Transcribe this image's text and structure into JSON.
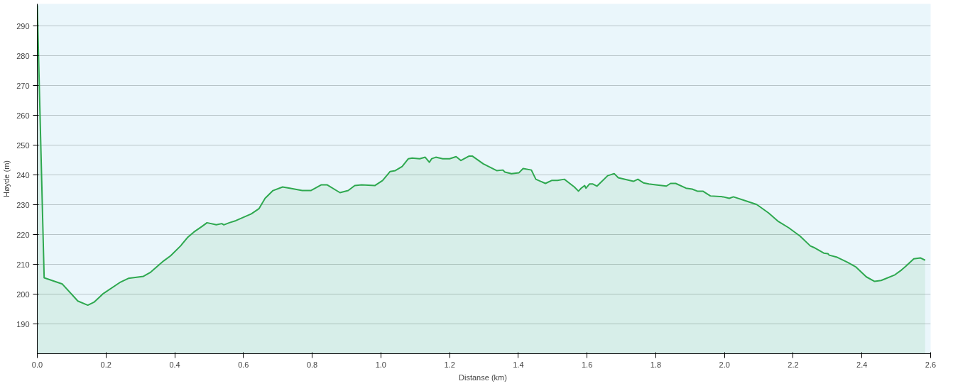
{
  "chart_data": {
    "type": "area",
    "xlabel": "Distanse  (km)",
    "ylabel": "Høyde (m)",
    "xlim": [
      0,
      2.6
    ],
    "ylim": [
      180,
      297.5
    ],
    "xticks": [
      {
        "value": 0,
        "label": "0.0"
      },
      0.2,
      0.4,
      0.6,
      0.8,
      {
        "value": 1,
        "label": "1.0"
      },
      1.2,
      1.4,
      1.6,
      1.8,
      {
        "value": 2,
        "label": "2.0"
      },
      2.2,
      2.4,
      2.6
    ],
    "yticks": [
      190,
      200,
      210,
      220,
      230,
      240,
      250,
      260,
      270,
      280,
      290
    ],
    "grid": "y",
    "series": [
      {
        "color": "#2ea84f",
        "x": [
          0,
          0.02,
          0.073,
          0.118,
          0.147,
          0.165,
          0.191,
          0.24,
          0.265,
          0.309,
          0.33,
          0.368,
          0.388,
          0.417,
          0.437,
          0.456,
          0.48,
          0.494,
          0.521,
          0.537,
          0.543,
          0.559,
          0.578,
          0.623,
          0.645,
          0.663,
          0.686,
          0.714,
          0.735,
          0.771,
          0.796,
          0.826,
          0.844,
          0.881,
          0.905,
          0.924,
          0.944,
          0.983,
          1.005,
          1.027,
          1.042,
          1.062,
          1.08,
          1.091,
          1.113,
          1.129,
          1.141,
          1.148,
          1.16,
          1.18,
          1.2,
          1.219,
          1.233,
          1.257,
          1.266,
          1.298,
          1.337,
          1.355,
          1.361,
          1.38,
          1.402,
          1.414,
          1.438,
          1.451,
          1.479,
          1.497,
          1.514,
          1.534,
          1.563,
          1.575,
          1.583,
          1.593,
          1.597,
          1.607,
          1.617,
          1.629,
          1.66,
          1.679,
          1.691,
          1.735,
          1.748,
          1.764,
          1.78,
          1.8,
          1.831,
          1.843,
          1.858,
          1.888,
          1.906,
          1.921,
          1.937,
          1.959,
          1.996,
          2.014,
          2.026,
          2.063,
          2.094,
          2.128,
          2.157,
          2.187,
          2.22,
          2.25,
          2.26,
          2.289,
          2.301,
          2.305,
          2.328,
          2.358,
          2.383,
          2.413,
          2.437,
          2.456,
          2.496,
          2.515,
          2.527,
          2.551,
          2.57,
          2.584
        ],
        "values": [
          297,
          205.5,
          203.4,
          197.7,
          196.3,
          197.3,
          200.1,
          203.9,
          205.3,
          206,
          207.4,
          211.2,
          212.9,
          216.2,
          219,
          220.9,
          222.8,
          224,
          223.3,
          223.7,
          223.3,
          224,
          224.7,
          227,
          228.7,
          232.2,
          234.8,
          236,
          235.6,
          234.8,
          234.8,
          236.7,
          236.7,
          234.1,
          234.8,
          236.5,
          236.7,
          236.5,
          238.2,
          241.2,
          241.5,
          242.9,
          245.5,
          245.7,
          245.5,
          246,
          244.3,
          245.5,
          246,
          245.5,
          245.5,
          246.2,
          244.9,
          246.4,
          246.4,
          243.8,
          241.5,
          241.7,
          241,
          240.5,
          240.8,
          242.2,
          241.7,
          238.6,
          237.2,
          238.2,
          238.2,
          238.6,
          236,
          234.6,
          235.6,
          236.5,
          235.6,
          237,
          237,
          236.3,
          239.8,
          240.5,
          239.1,
          237.9,
          238.6,
          237.4,
          237,
          236.7,
          236.3,
          237.2,
          237.2,
          235.6,
          235.3,
          234.6,
          234.6,
          233,
          232.7,
          232.2,
          232.7,
          231.3,
          230.1,
          227.3,
          224.4,
          222.3,
          219.5,
          216.2,
          215.7,
          213.8,
          213.6,
          213.1,
          212.4,
          210.7,
          209.1,
          205.8,
          204.3,
          204.6,
          206.5,
          208.1,
          209.3,
          211.9,
          212.2,
          211.4
        ]
      }
    ]
  }
}
